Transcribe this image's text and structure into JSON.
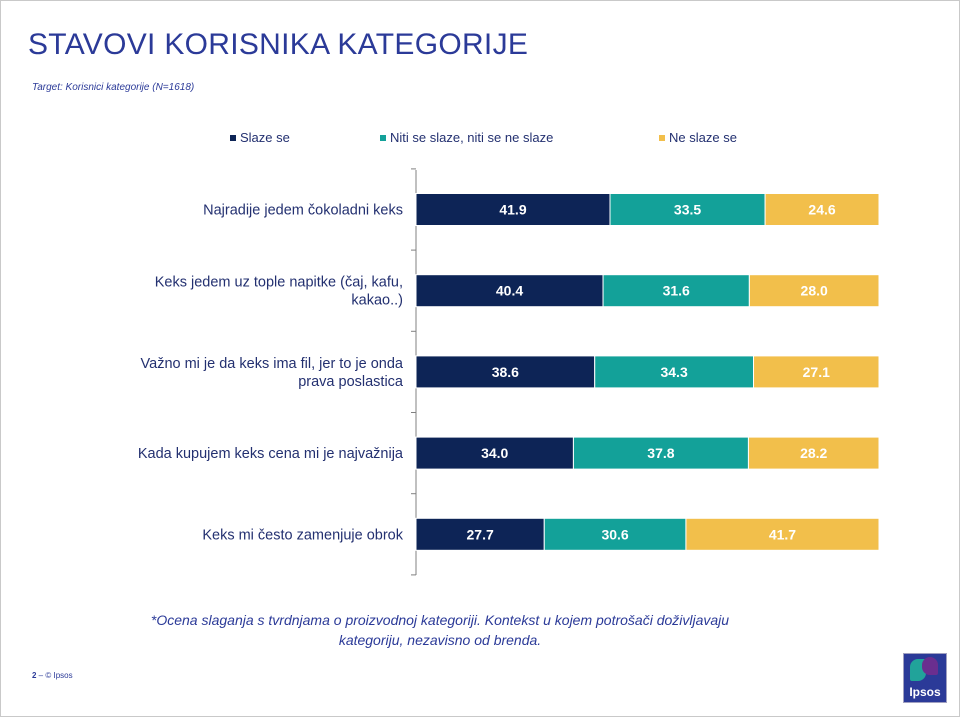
{
  "title": "STAVOVI KORISNIKA KATEGORIJE",
  "target": "Target: Korisnici kategorije (N=1618)",
  "footnote": "*Ocena slaganja s tvrdnjama o proizvodnoj kategoriji. Kontekst u kojem potrošači doživljavaju kategoriju, nezavisno od brenda.",
  "footer": {
    "page": "2",
    "sep": " – ",
    "copyright": "© Ipsos"
  },
  "logo": {
    "text": "Ipsos"
  },
  "colors": {
    "series1": "#0d2456",
    "series2": "#13a199",
    "series3": "#f2bf4b"
  },
  "chart_data": {
    "type": "bar",
    "orientation": "horizontal",
    "stacked": true,
    "categories": [
      "Najradije jedem čokoladni keks",
      "Keks jedem uz tople napitke (čaj, kafu, kakao..)",
      "Važno mi je da keks ima fil, jer to je onda prava poslastica",
      "Kada kupujem keks cena mi je najvažnija",
      "Keks mi često zamenjuje obrok"
    ],
    "series": [
      {
        "name": "Slaze se",
        "values": [
          41.9,
          40.4,
          38.6,
          34.0,
          27.7
        ]
      },
      {
        "name": "Niti se slaze, niti se ne slaze",
        "values": [
          33.5,
          31.6,
          34.3,
          37.8,
          30.6
        ]
      },
      {
        "name": "Ne slaze se",
        "values": [
          24.6,
          28.0,
          27.1,
          28.2,
          41.7
        ]
      }
    ],
    "xlim": [
      0,
      100
    ],
    "legend": "top",
    "grid": false
  }
}
